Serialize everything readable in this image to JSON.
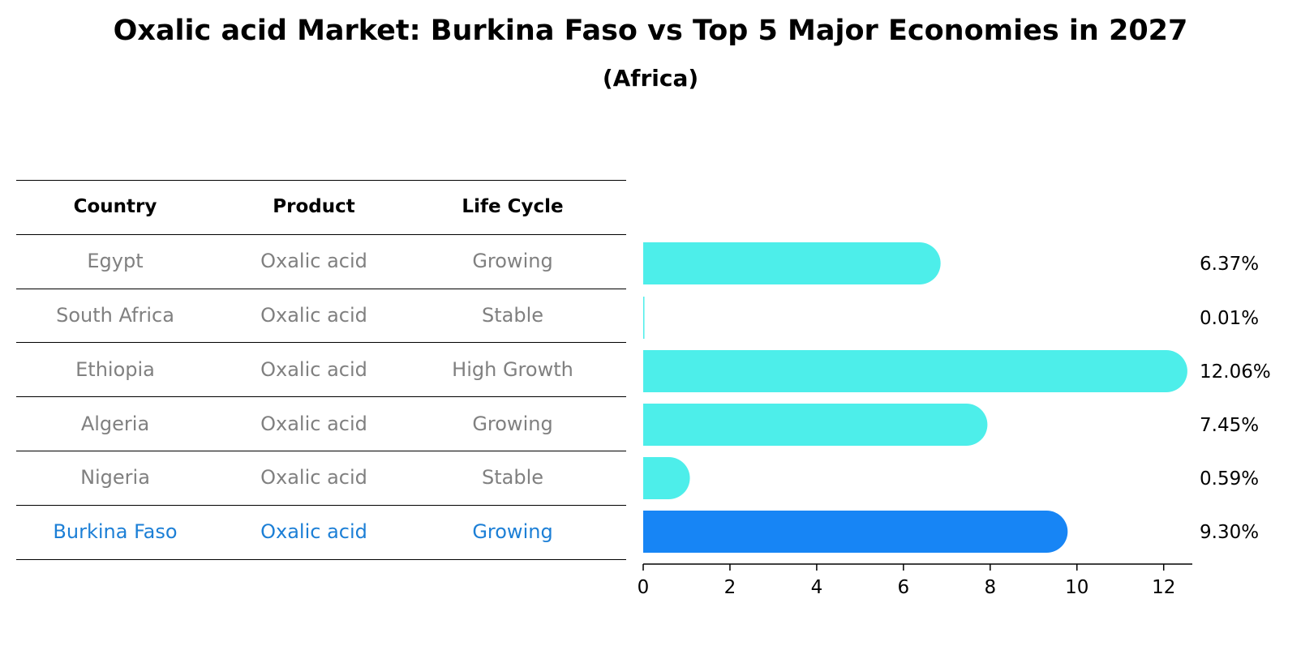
{
  "title": "Oxalic acid Market: Burkina Faso vs Top 5 Major Economies in 2027",
  "subtitle": "(Africa)",
  "table": {
    "headers": [
      "Country",
      "Product",
      "Life Cycle"
    ],
    "rows": [
      {
        "country": "Egypt",
        "product": "Oxalic acid",
        "life_cycle": "Growing",
        "highlight": false
      },
      {
        "country": "South Africa",
        "product": "Oxalic acid",
        "life_cycle": "Stable",
        "highlight": false
      },
      {
        "country": "Ethiopia",
        "product": "Oxalic acid",
        "life_cycle": "High Growth",
        "highlight": false
      },
      {
        "country": "Algeria",
        "product": "Oxalic acid",
        "life_cycle": "Growing",
        "highlight": false
      },
      {
        "country": "Nigeria",
        "product": "Oxalic acid",
        "life_cycle": "Stable",
        "highlight": false
      },
      {
        "country": "Burkina Faso",
        "product": "Oxalic acid",
        "life_cycle": "Growing",
        "highlight": true
      }
    ]
  },
  "colors": {
    "bar": "#4DEEEA",
    "highlight_bar": "#1785F5",
    "muted_text": "#808080",
    "highlight_text": "#1C7FD6"
  },
  "chart_data": {
    "type": "bar",
    "orientation": "horizontal",
    "categories": [
      "Egypt",
      "South Africa",
      "Ethiopia",
      "Algeria",
      "Nigeria",
      "Burkina Faso"
    ],
    "values": [
      6.37,
      0.01,
      12.06,
      7.45,
      0.59,
      9.3
    ],
    "value_labels": [
      "6.37%",
      "0.01%",
      "12.06%",
      "7.45%",
      "0.59%",
      "9.30%"
    ],
    "xlim": [
      0,
      12.66
    ],
    "xticks": [
      0,
      2,
      4,
      6,
      8,
      10,
      12
    ],
    "highlight_index": 5,
    "grid": false
  }
}
